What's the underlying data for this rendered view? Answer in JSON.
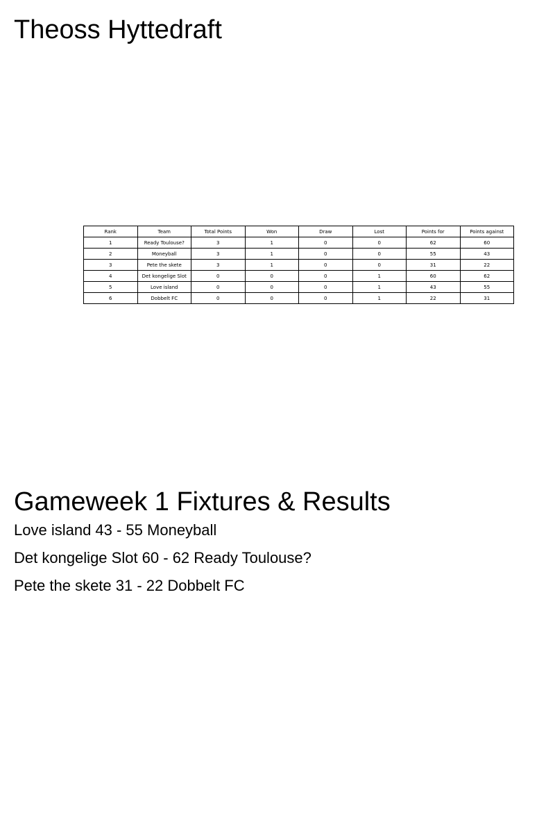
{
  "title": "Theoss Hyttedraft",
  "standings": {
    "headers": [
      "Rank",
      "Team",
      "Total Points",
      "Won",
      "Draw",
      "Lost",
      "Points for",
      "Points against"
    ],
    "rows": [
      [
        "1",
        "Ready Toulouse?",
        "3",
        "1",
        "0",
        "0",
        "62",
        "60"
      ],
      [
        "2",
        "Moneyball",
        "3",
        "1",
        "0",
        "0",
        "55",
        "43"
      ],
      [
        "3",
        "Pete the skete",
        "3",
        "1",
        "0",
        "0",
        "31",
        "22"
      ],
      [
        "4",
        "Det kongelige Slot",
        "0",
        "0",
        "0",
        "1",
        "60",
        "62"
      ],
      [
        "5",
        "Love island",
        "0",
        "0",
        "0",
        "1",
        "43",
        "55"
      ],
      [
        "6",
        "Dobbelt FC",
        "0",
        "0",
        "0",
        "1",
        "22",
        "31"
      ]
    ]
  },
  "fixtures": {
    "title": "Gameweek 1 Fixtures & Results",
    "results": [
      "Love island 43 - 55 Moneyball",
      "Det kongelige Slot 60 - 62 Ready Toulouse?",
      "Pete the skete 31 - 22 Dobbelt FC"
    ]
  }
}
